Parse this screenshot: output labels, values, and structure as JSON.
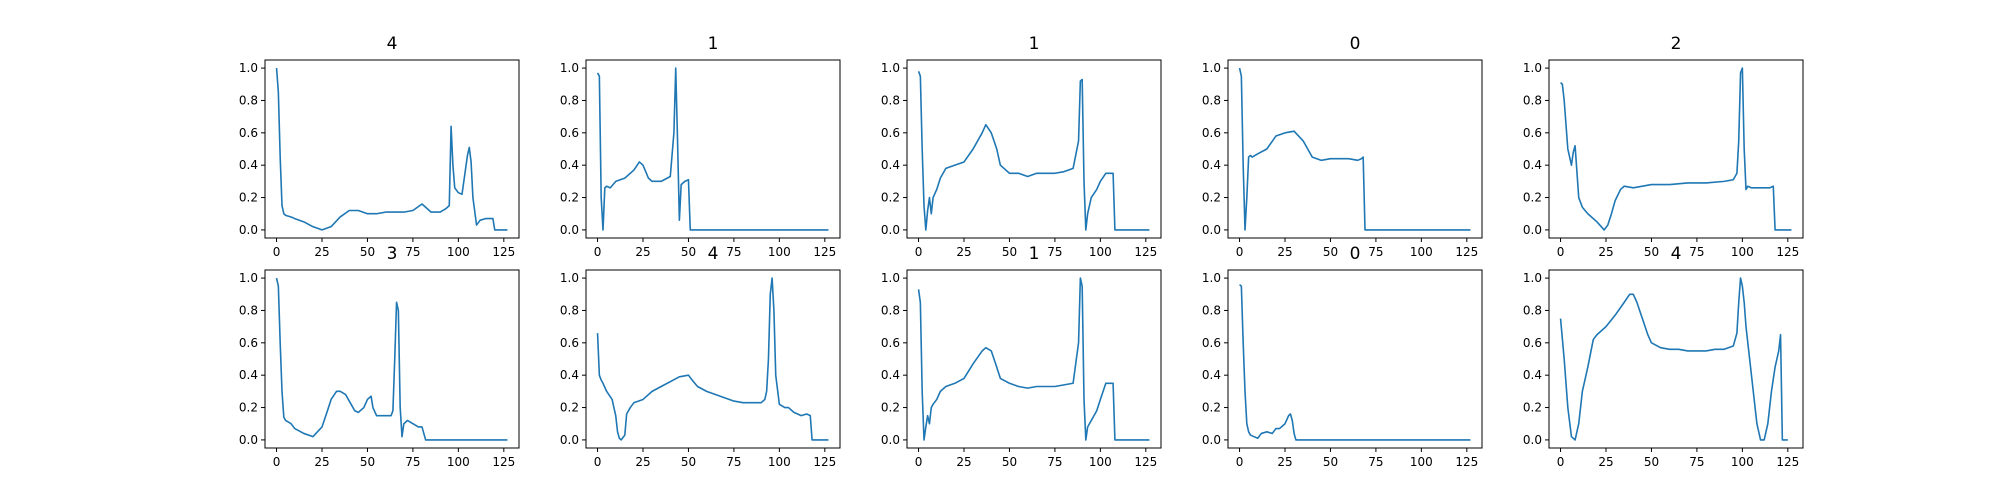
{
  "chart_data": [
    {
      "type": "line",
      "title": "4",
      "xlim": [
        0,
        127
      ],
      "ylim": [
        0,
        1
      ],
      "xticks": [
        0,
        25,
        50,
        75,
        100,
        125
      ],
      "yticks": [
        0.0,
        0.2,
        0.4,
        0.6,
        0.8,
        1.0
      ],
      "series": [
        {
          "color": "#1f77b4",
          "x": [
            0,
            1,
            2,
            3,
            4,
            5,
            8,
            10,
            15,
            20,
            25,
            30,
            35,
            40,
            45,
            50,
            55,
            60,
            65,
            70,
            75,
            80,
            82,
            85,
            90,
            93,
            95,
            96,
            97,
            98,
            100,
            102,
            103,
            105,
            106,
            107,
            108,
            110,
            112,
            115,
            118,
            119,
            120,
            125,
            127
          ],
          "y": [
            1.0,
            0.85,
            0.45,
            0.15,
            0.1,
            0.09,
            0.08,
            0.07,
            0.05,
            0.02,
            0.0,
            0.02,
            0.08,
            0.12,
            0.12,
            0.1,
            0.1,
            0.11,
            0.11,
            0.11,
            0.12,
            0.16,
            0.14,
            0.11,
            0.11,
            0.13,
            0.15,
            0.64,
            0.4,
            0.26,
            0.23,
            0.22,
            0.3,
            0.46,
            0.51,
            0.42,
            0.2,
            0.03,
            0.06,
            0.07,
            0.07,
            0.07,
            0.0,
            0.0,
            0.0
          ]
        }
      ]
    },
    {
      "type": "line",
      "title": "1",
      "xlim": [
        0,
        127
      ],
      "ylim": [
        0,
        1
      ],
      "xticks": [
        0,
        25,
        50,
        75,
        100,
        125
      ],
      "yticks": [
        0.0,
        0.2,
        0.4,
        0.6,
        0.8,
        1.0
      ],
      "series": [
        {
          "color": "#1f77b4",
          "x": [
            0,
            1,
            2,
            3,
            4,
            5,
            7,
            10,
            15,
            20,
            23,
            25,
            28,
            30,
            35,
            40,
            42,
            43,
            44,
            45,
            46,
            47,
            48,
            50,
            51,
            52,
            60,
            70,
            80,
            90,
            100,
            110,
            120,
            127
          ],
          "y": [
            0.97,
            0.95,
            0.2,
            0.0,
            0.26,
            0.27,
            0.26,
            0.3,
            0.32,
            0.37,
            0.42,
            0.4,
            0.32,
            0.3,
            0.3,
            0.33,
            0.6,
            1.0,
            0.55,
            0.06,
            0.28,
            0.29,
            0.3,
            0.31,
            0.0,
            0.0,
            0.0,
            0.0,
            0.0,
            0.0,
            0.0,
            0.0,
            0.0,
            0.0
          ]
        }
      ]
    },
    {
      "type": "line",
      "title": "1",
      "xlim": [
        0,
        127
      ],
      "ylim": [
        0,
        1
      ],
      "xticks": [
        0,
        25,
        50,
        75,
        100,
        125
      ],
      "yticks": [
        0.0,
        0.2,
        0.4,
        0.6,
        0.8,
        1.0
      ],
      "series": [
        {
          "color": "#1f77b4",
          "x": [
            0,
            1,
            2,
            3,
            4,
            5,
            6,
            7,
            8,
            10,
            12,
            15,
            20,
            25,
            30,
            35,
            37,
            40,
            43,
            45,
            50,
            55,
            60,
            65,
            70,
            75,
            80,
            85,
            88,
            89,
            90,
            91,
            92,
            93,
            95,
            98,
            100,
            103,
            105,
            107,
            108,
            110,
            120,
            127
          ],
          "y": [
            0.98,
            0.95,
            0.5,
            0.15,
            0.0,
            0.12,
            0.2,
            0.1,
            0.2,
            0.25,
            0.32,
            0.38,
            0.4,
            0.42,
            0.5,
            0.6,
            0.65,
            0.6,
            0.5,
            0.4,
            0.35,
            0.35,
            0.33,
            0.35,
            0.35,
            0.35,
            0.36,
            0.38,
            0.55,
            0.92,
            0.93,
            0.3,
            0.0,
            0.1,
            0.2,
            0.25,
            0.3,
            0.35,
            0.35,
            0.35,
            0.0,
            0.0,
            0.0,
            0.0
          ]
        }
      ]
    },
    {
      "type": "line",
      "title": "0",
      "xlim": [
        0,
        127
      ],
      "ylim": [
        0,
        1
      ],
      "xticks": [
        0,
        25,
        50,
        75,
        100,
        125
      ],
      "yticks": [
        0.0,
        0.2,
        0.4,
        0.6,
        0.8,
        1.0
      ],
      "series": [
        {
          "color": "#1f77b4",
          "x": [
            0,
            1,
            2,
            3,
            4,
            5,
            6,
            7,
            10,
            15,
            20,
            25,
            30,
            35,
            40,
            45,
            50,
            55,
            60,
            65,
            67,
            68,
            69,
            70,
            80,
            90,
            100,
            110,
            120,
            127
          ],
          "y": [
            1.0,
            0.95,
            0.4,
            0.0,
            0.2,
            0.45,
            0.46,
            0.45,
            0.47,
            0.5,
            0.58,
            0.6,
            0.61,
            0.55,
            0.45,
            0.43,
            0.44,
            0.44,
            0.44,
            0.43,
            0.44,
            0.45,
            0.0,
            0.0,
            0.0,
            0.0,
            0.0,
            0.0,
            0.0,
            0.0
          ]
        }
      ]
    },
    {
      "type": "line",
      "title": "2",
      "xlim": [
        0,
        127
      ],
      "ylim": [
        0,
        1
      ],
      "xticks": [
        0,
        25,
        50,
        75,
        100,
        125
      ],
      "yticks": [
        0.0,
        0.2,
        0.4,
        0.6,
        0.8,
        1.0
      ],
      "series": [
        {
          "color": "#1f77b4",
          "x": [
            0,
            1,
            2,
            3,
            4,
            5,
            6,
            7,
            8,
            10,
            12,
            15,
            20,
            24,
            26,
            28,
            30,
            33,
            35,
            40,
            50,
            60,
            70,
            80,
            90,
            95,
            97,
            98,
            99,
            100,
            101,
            102,
            103,
            105,
            110,
            115,
            117,
            118,
            120,
            125,
            127
          ],
          "y": [
            0.91,
            0.9,
            0.8,
            0.65,
            0.5,
            0.45,
            0.4,
            0.48,
            0.52,
            0.2,
            0.14,
            0.1,
            0.05,
            0.0,
            0.03,
            0.1,
            0.18,
            0.25,
            0.27,
            0.26,
            0.28,
            0.28,
            0.29,
            0.29,
            0.3,
            0.31,
            0.35,
            0.55,
            0.97,
            1.0,
            0.5,
            0.25,
            0.27,
            0.26,
            0.26,
            0.26,
            0.27,
            0.0,
            0.0,
            0.0,
            0.0
          ]
        }
      ]
    },
    {
      "type": "line",
      "title": "3",
      "xlim": [
        0,
        127
      ],
      "ylim": [
        0,
        1
      ],
      "xticks": [
        0,
        25,
        50,
        75,
        100,
        125
      ],
      "yticks": [
        0.0,
        0.2,
        0.4,
        0.6,
        0.8,
        1.0
      ],
      "series": [
        {
          "color": "#1f77b4",
          "x": [
            0,
            1,
            2,
            3,
            4,
            5,
            8,
            10,
            15,
            20,
            25,
            28,
            30,
            33,
            35,
            38,
            40,
            43,
            45,
            48,
            50,
            52,
            53,
            55,
            60,
            63,
            64,
            65,
            66,
            67,
            68,
            69,
            70,
            72,
            75,
            78,
            80,
            82,
            90,
            100,
            110,
            120,
            127
          ],
          "y": [
            1.0,
            0.95,
            0.6,
            0.3,
            0.14,
            0.12,
            0.1,
            0.07,
            0.04,
            0.02,
            0.08,
            0.18,
            0.25,
            0.3,
            0.3,
            0.28,
            0.24,
            0.18,
            0.17,
            0.2,
            0.25,
            0.27,
            0.2,
            0.15,
            0.15,
            0.15,
            0.18,
            0.5,
            0.85,
            0.8,
            0.2,
            0.02,
            0.1,
            0.12,
            0.1,
            0.08,
            0.08,
            0.0,
            0.0,
            0.0,
            0.0,
            0.0,
            0.0
          ]
        }
      ]
    },
    {
      "type": "line",
      "title": "4",
      "xlim": [
        0,
        127
      ],
      "ylim": [
        0,
        1
      ],
      "xticks": [
        0,
        25,
        50,
        75,
        100,
        125
      ],
      "yticks": [
        0.0,
        0.2,
        0.4,
        0.6,
        0.8,
        1.0
      ],
      "series": [
        {
          "color": "#1f77b4",
          "x": [
            0,
            1,
            2,
            3,
            5,
            8,
            10,
            11,
            12,
            13,
            15,
            16,
            18,
            20,
            25,
            30,
            35,
            40,
            45,
            50,
            52,
            55,
            60,
            65,
            70,
            75,
            80,
            85,
            90,
            92,
            93,
            94,
            95,
            96,
            97,
            98,
            100,
            103,
            105,
            108,
            110,
            112,
            115,
            117,
            118,
            120,
            125,
            127
          ],
          "y": [
            0.66,
            0.4,
            0.37,
            0.35,
            0.3,
            0.25,
            0.15,
            0.05,
            0.01,
            0.0,
            0.03,
            0.16,
            0.2,
            0.23,
            0.25,
            0.3,
            0.33,
            0.36,
            0.39,
            0.4,
            0.37,
            0.33,
            0.3,
            0.28,
            0.26,
            0.24,
            0.23,
            0.23,
            0.23,
            0.25,
            0.3,
            0.5,
            0.9,
            1.0,
            0.8,
            0.4,
            0.22,
            0.2,
            0.2,
            0.17,
            0.16,
            0.15,
            0.16,
            0.15,
            0.0,
            0.0,
            0.0,
            0.0
          ]
        }
      ]
    },
    {
      "type": "line",
      "title": "1",
      "xlim": [
        0,
        127
      ],
      "ylim": [
        0,
        1
      ],
      "xticks": [
        0,
        25,
        50,
        75,
        100,
        125
      ],
      "yticks": [
        0.0,
        0.2,
        0.4,
        0.6,
        0.8,
        1.0
      ],
      "series": [
        {
          "color": "#1f77b4",
          "x": [
            0,
            1,
            2,
            3,
            4,
            5,
            6,
            7,
            8,
            10,
            12,
            15,
            20,
            25,
            30,
            35,
            37,
            40,
            43,
            45,
            50,
            55,
            60,
            65,
            70,
            75,
            80,
            85,
            88,
            89,
            90,
            91,
            92,
            93,
            95,
            98,
            100,
            103,
            105,
            107,
            108,
            110,
            120,
            127
          ],
          "y": [
            0.93,
            0.85,
            0.3,
            0.0,
            0.08,
            0.15,
            0.1,
            0.2,
            0.22,
            0.25,
            0.3,
            0.33,
            0.35,
            0.38,
            0.47,
            0.55,
            0.57,
            0.55,
            0.45,
            0.38,
            0.35,
            0.33,
            0.32,
            0.33,
            0.33,
            0.33,
            0.34,
            0.35,
            0.6,
            1.0,
            0.95,
            0.25,
            0.0,
            0.08,
            0.12,
            0.18,
            0.25,
            0.35,
            0.35,
            0.35,
            0.0,
            0.0,
            0.0,
            0.0
          ]
        }
      ]
    },
    {
      "type": "line",
      "title": "0",
      "xlim": [
        0,
        127
      ],
      "ylim": [
        0,
        1
      ],
      "xticks": [
        0,
        25,
        50,
        75,
        100,
        125
      ],
      "yticks": [
        0.0,
        0.2,
        0.4,
        0.6,
        0.8,
        1.0
      ],
      "series": [
        {
          "color": "#1f77b4",
          "x": [
            0,
            1,
            2,
            3,
            4,
            5,
            6,
            8,
            10,
            12,
            15,
            18,
            20,
            22,
            25,
            27,
            28,
            29,
            30,
            31,
            32,
            40,
            50,
            60,
            70,
            80,
            90,
            100,
            110,
            120,
            127
          ],
          "y": [
            0.96,
            0.95,
            0.6,
            0.3,
            0.1,
            0.05,
            0.03,
            0.02,
            0.01,
            0.04,
            0.05,
            0.04,
            0.07,
            0.07,
            0.1,
            0.15,
            0.16,
            0.12,
            0.04,
            0.0,
            0.0,
            0.0,
            0.0,
            0.0,
            0.0,
            0.0,
            0.0,
            0.0,
            0.0,
            0.0,
            0.0
          ]
        }
      ]
    },
    {
      "type": "line",
      "title": "4",
      "xlim": [
        0,
        127
      ],
      "ylim": [
        0,
        1
      ],
      "xticks": [
        0,
        25,
        50,
        75,
        100,
        125
      ],
      "yticks": [
        0.0,
        0.2,
        0.4,
        0.6,
        0.8,
        1.0
      ],
      "series": [
        {
          "color": "#1f77b4",
          "x": [
            0,
            2,
            4,
            6,
            8,
            10,
            12,
            15,
            18,
            20,
            25,
            30,
            35,
            38,
            40,
            42,
            45,
            48,
            50,
            55,
            60,
            65,
            70,
            75,
            80,
            85,
            90,
            95,
            97,
            98,
            99,
            100,
            101,
            102,
            104,
            106,
            108,
            110,
            112,
            114,
            116,
            118,
            120,
            121,
            122,
            125
          ],
          "y": [
            0.75,
            0.5,
            0.2,
            0.02,
            0.0,
            0.1,
            0.3,
            0.45,
            0.62,
            0.65,
            0.7,
            0.77,
            0.85,
            0.9,
            0.9,
            0.85,
            0.75,
            0.65,
            0.6,
            0.57,
            0.56,
            0.56,
            0.55,
            0.55,
            0.55,
            0.56,
            0.56,
            0.58,
            0.66,
            0.85,
            1.0,
            0.95,
            0.85,
            0.7,
            0.5,
            0.3,
            0.1,
            0.0,
            0.0,
            0.1,
            0.3,
            0.45,
            0.55,
            0.65,
            0.0,
            0.0
          ]
        }
      ]
    }
  ]
}
